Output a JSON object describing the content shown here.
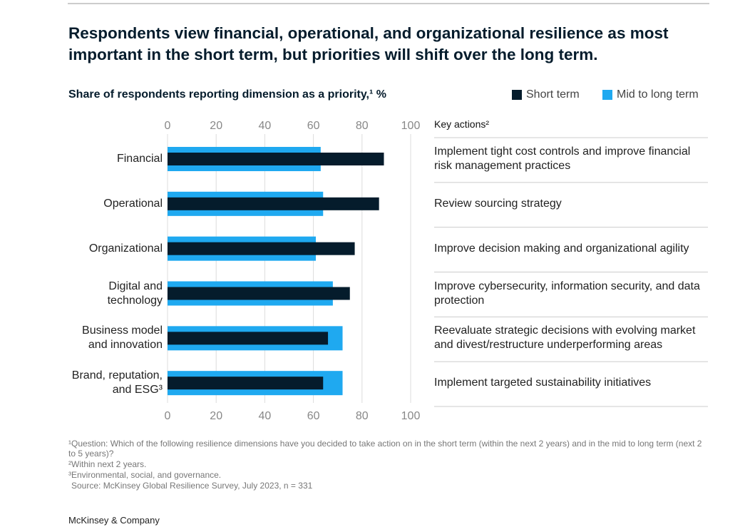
{
  "chart_data": {
    "type": "bar",
    "orientation": "horizontal",
    "title": "Respondents view financial, operational, and organizational resilience as most important in the short term, but priorities will shift over the long term.",
    "subtitle": "Share of respondents reporting dimension as a priority,¹ %",
    "categories": [
      "Financial",
      "Operational",
      "Organizational",
      "Digital and technology",
      "Business model and innovation",
      "Brand, reputation, and ESG³"
    ],
    "series": [
      {
        "name": "Short term",
        "color": "#051c2c",
        "values": [
          89,
          87,
          77,
          75,
          66,
          64
        ]
      },
      {
        "name": "Mid to long term",
        "color": "#1fa9f0",
        "values": [
          63,
          64,
          61,
          68,
          72,
          72
        ]
      }
    ],
    "xlim": [
      0,
      100
    ],
    "xticks": [
      0,
      20,
      40,
      60,
      80,
      100
    ],
    "grid": true,
    "table": {
      "header": "Key actions²",
      "rows": [
        "Implement tight cost controls and improve financial risk management practices",
        "Review sourcing strategy",
        "Improve decision making and organizational agility",
        "Improve cybersecurity, information security, and data protection",
        "Reevaluate strategic decisions with evolving market and divest/restructure underperforming areas",
        "Implement targeted sustainability initiatives"
      ]
    },
    "footnotes": [
      "¹Question: Which of the following resilience dimensions have you decided to take action on in the short term (within the next 2 years) and in the mid to long term (next 2 to 5 years)?",
      "²Within next 2 years.",
      "³Environmental, social, and governance."
    ],
    "source": "Source: McKinsey Global Resilience Survey, July 2023, n = 331",
    "brand": "McKinsey & Company"
  }
}
